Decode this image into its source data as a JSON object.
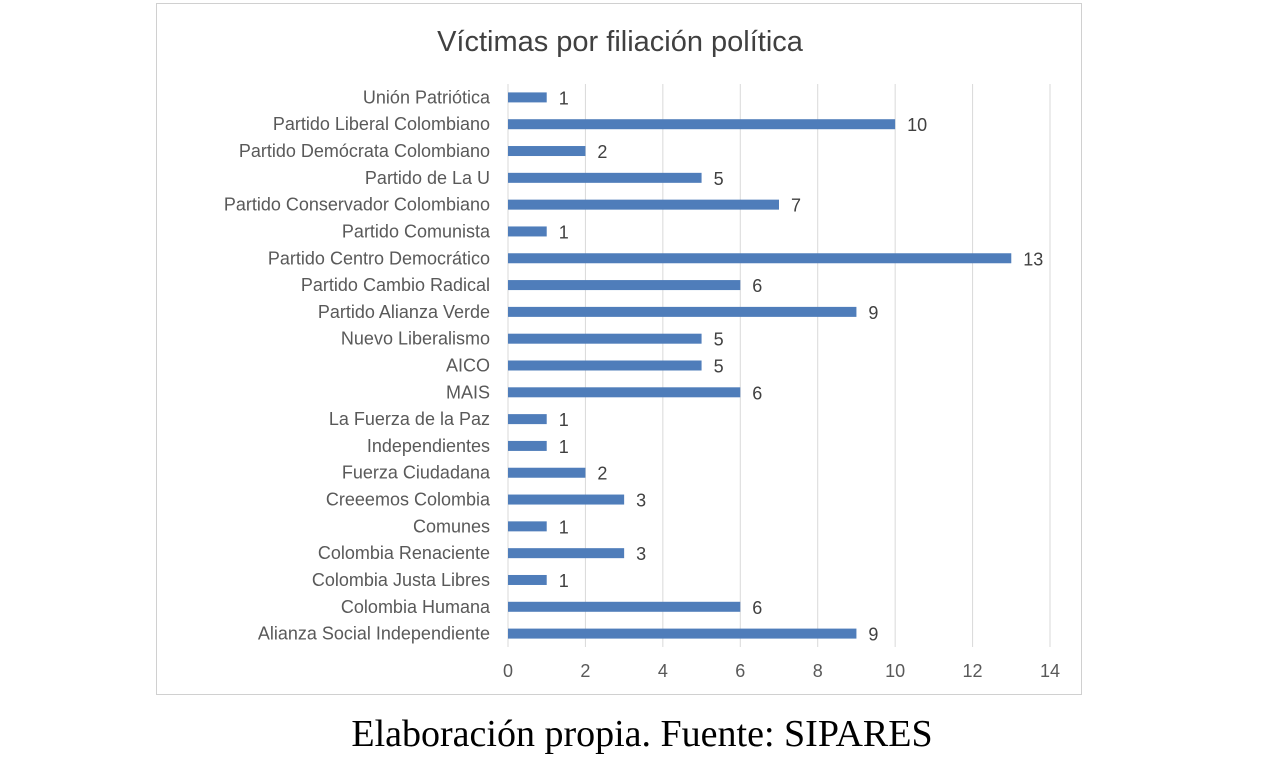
{
  "chart_data": {
    "type": "bar",
    "orientation": "horizontal",
    "title": "Víctimas por filiación política",
    "xlabel": "",
    "ylabel": "",
    "xlim": [
      0,
      14
    ],
    "xticks": [
      0,
      2,
      4,
      6,
      8,
      10,
      12,
      14
    ],
    "grid": "vertical",
    "legend": "none",
    "bar_color": "#4f7dba",
    "categories": [
      "Unión Patriótica",
      "Partido Liberal Colombiano",
      "Partido Demócrata Colombiano",
      "Partido de La U",
      "Partido Conservador Colombiano",
      "Partido Comunista",
      "Partido Centro Democrático",
      "Partido Cambio Radical",
      "Partido Alianza Verde",
      "Nuevo Liberalismo",
      "AICO",
      "MAIS",
      "La Fuerza de la Paz",
      "Independientes",
      "Fuerza Ciudadana",
      "Creeemos Colombia",
      "Comunes",
      "Colombia Renaciente",
      "Colombia Justa Libres",
      "Colombia Humana",
      "Alianza Social Independiente"
    ],
    "values": [
      1,
      10,
      2,
      5,
      7,
      1,
      13,
      6,
      9,
      5,
      5,
      6,
      1,
      1,
      2,
      3,
      1,
      3,
      1,
      6,
      9
    ]
  },
  "caption": "Elaboración propia. Fuente: SIPARES"
}
